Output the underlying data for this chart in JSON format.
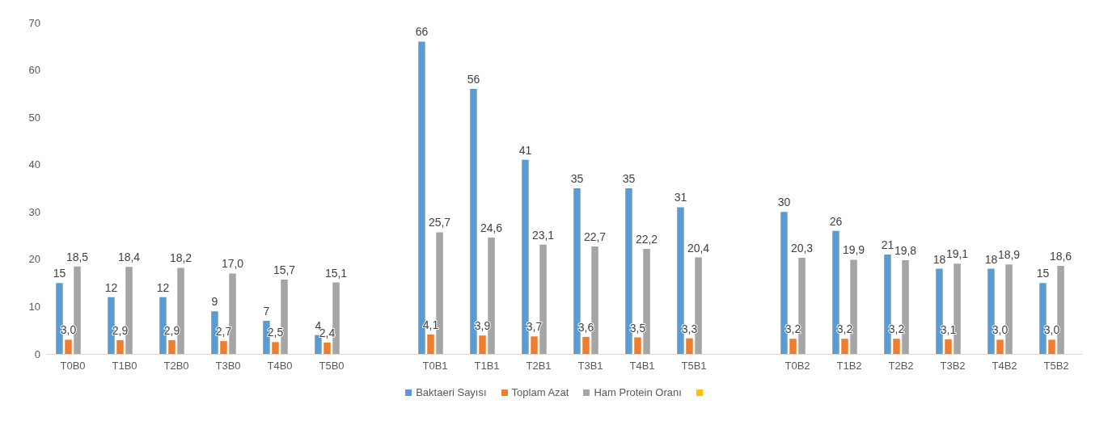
{
  "chart_data": {
    "type": "bar",
    "categories": [
      "T0B0",
      "T1B0",
      "T2B0",
      "T3B0",
      "T4B0",
      "T5B0",
      null,
      "T0B1",
      "T1B1",
      "T2B1",
      "T3B1",
      "T4B1",
      "T5B1",
      null,
      "T0B2",
      "T1B2",
      "T2B2",
      "T3B2",
      "T4B2",
      "T5B2"
    ],
    "series": [
      {
        "name": "Baktaeri Sayısı",
        "color": "#5b9bd5",
        "values": [
          15,
          12,
          12,
          9,
          7,
          4,
          null,
          66,
          56,
          41,
          35,
          35,
          31,
          null,
          30,
          26,
          21,
          18,
          18,
          15
        ],
        "value_labels": [
          "15",
          "12",
          "12",
          "9",
          "7",
          "4",
          null,
          "66",
          "56",
          "41",
          "35",
          "35",
          "31",
          null,
          "30",
          "26",
          "21",
          "18",
          "18",
          "15"
        ]
      },
      {
        "name": "Toplam Azat",
        "color": "#ed7d31",
        "values": [
          3.0,
          2.9,
          2.9,
          2.7,
          2.5,
          2.4,
          null,
          4.1,
          3.9,
          3.7,
          3.6,
          3.5,
          3.3,
          null,
          3.2,
          3.2,
          3.2,
          3.1,
          3.0,
          3.0
        ],
        "value_labels": [
          "3,0",
          "2,9",
          "2,9",
          "2,7",
          "2,5",
          "2,4",
          null,
          "4,1",
          "3,9",
          "3,7",
          "3,6",
          "3,5",
          "3,3",
          null,
          "3,2",
          "3,2",
          "3,2",
          "3,1",
          "3,0",
          "3,0"
        ]
      },
      {
        "name": "Ham Protein Oranı",
        "color": "#a5a5a5",
        "values": [
          18.5,
          18.4,
          18.2,
          17.0,
          15.7,
          15.1,
          null,
          25.7,
          24.6,
          23.1,
          22.7,
          22.2,
          20.4,
          null,
          20.3,
          19.9,
          19.8,
          19.1,
          18.9,
          18.6
        ],
        "value_labels": [
          "18,5",
          "18,4",
          "18,2",
          "17,0",
          "15,7",
          "15,1",
          null,
          "25,7",
          "24,6",
          "23,1",
          "22,7",
          "22,2",
          "20,4",
          null,
          "20,3",
          "19,9",
          "19,8",
          "19,1",
          "18,9",
          "18,6"
        ]
      },
      {
        "color": "#ffc000",
        "values": [
          null,
          null,
          null,
          null,
          null,
          null,
          null,
          null,
          null,
          null,
          null,
          null,
          null,
          null,
          null,
          null,
          null,
          null,
          null,
          null
        ]
      }
    ],
    "ylim": [
      0,
      70
    ],
    "yticks": [
      0,
      10,
      20,
      30,
      40,
      50,
      60,
      70
    ],
    "grid": false,
    "legend": "bottom"
  }
}
